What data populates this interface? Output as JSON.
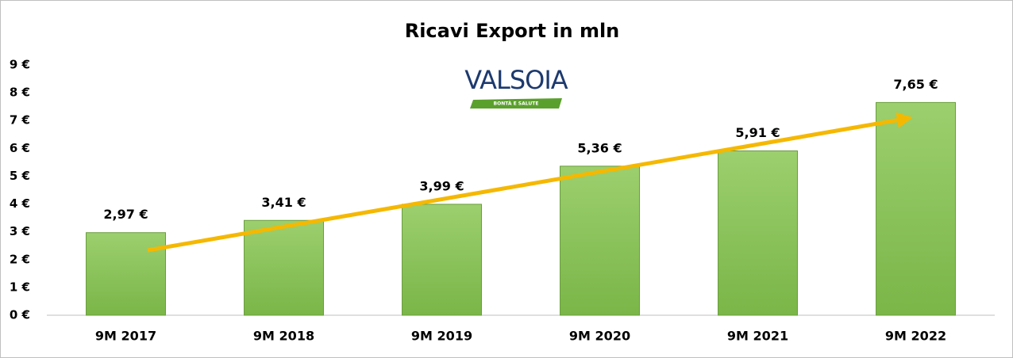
{
  "chart_data": {
    "type": "bar",
    "title": "Ricavi Export in mln",
    "categories": [
      "9M 2017",
      "9M 2018",
      "9M 2019",
      "9M 2020",
      "9M 2021",
      "9M 2022"
    ],
    "values": [
      2.97,
      3.41,
      3.99,
      5.36,
      5.91,
      7.65
    ],
    "value_labels": [
      "2,97 €",
      "3,41 €",
      "3,99 €",
      "5,36 €",
      "5,91 €",
      "7,65 €"
    ],
    "color": "#7ab648",
    "ylim": [
      0,
      9
    ],
    "yticks": [
      {
        "value": 0,
        "label": "0 €"
      },
      {
        "value": 1,
        "label": "1 €"
      },
      {
        "value": 2,
        "label": "2 €"
      },
      {
        "value": 3,
        "label": "3 €"
      },
      {
        "value": 4,
        "label": "4 €"
      },
      {
        "value": 5,
        "label": "5 €"
      },
      {
        "value": 6,
        "label": "6 €"
      },
      {
        "value": 7,
        "label": "7 €"
      },
      {
        "value": 8,
        "label": "8 €"
      },
      {
        "value": 9,
        "label": "9 €"
      }
    ],
    "grid": false
  },
  "logo": {
    "name": "VALSOIA",
    "tagline": "BONTÀ E SALUTE"
  }
}
